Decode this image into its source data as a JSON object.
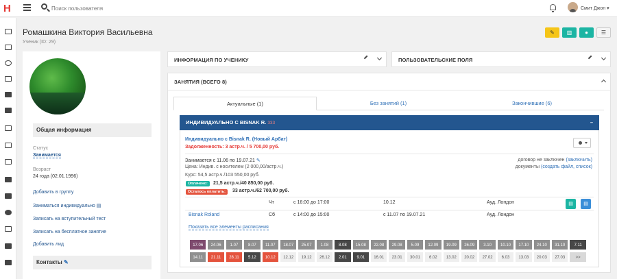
{
  "app": {
    "logo": "H",
    "search_placeholder": "Поиск пользователя",
    "username": "Смит Джон"
  },
  "page": {
    "title": "Ромашкина Виктория Васильевна",
    "subtitle": "Ученик (ID: 29)"
  },
  "toolbar": {
    "more_label": "☰"
  },
  "profile": {
    "general_header": "Общая информация",
    "status_label": "Статус",
    "status_value": "Занимается",
    "age_label": "Возраст",
    "age_value": "24 года (02.01.1996)",
    "links": [
      "Добавить в группу",
      "Заниматься индивидуально",
      "Записать на вступительный тест",
      "Записать на бесплатное занятие",
      "Добавить лид"
    ],
    "contacts_header": "Контакты"
  },
  "cards": {
    "student_info": "ИНФОРМАЦИЯ ПО УЧЕНИКУ",
    "custom_fields": "ПОЛЬЗОВАТЕЛЬСКИЕ ПОЛЯ",
    "lessons": "ЗАНЯТИЯ (ВСЕГО 8)"
  },
  "tabs": [
    "Актуальные (1)",
    "Без занятий (1)",
    "Закончившие (6)"
  ],
  "lesson": {
    "band_title": "ИНДИВИДУАЛЬНО С BISNAK R.",
    "band_suffix": "ЗЗЗ",
    "band_toggle": "–",
    "name": "Индивидуально с Bisnak R. (Новый Арбат)",
    "debt": "Задолженность: 3 астр.ч. / 5 700,00 руб.",
    "period": "Занимается с 11.06 по 19.07.21",
    "price": "Цена: Индив. с носителем (2 000,00/астр.ч.)",
    "course": "Курс: 54,5 астр.ч./103 550,00 руб.",
    "paid_badge": "Оплачено:",
    "paid_value": "21,5 астр.ч./40 850,00 руб.",
    "left_badge": "Осталось оплатить:",
    "left_value": "33 астр.ч./62 700,00 руб.",
    "contract_text": "договор не заключен",
    "contract_link": "(заключить)",
    "docs_text": "документы",
    "docs_link": "(создать файл, список)",
    "schedule": [
      {
        "teacher": "",
        "day": "Чт",
        "time": "с 16:00 до 17:00",
        "dates": "10.12",
        "room": "Ауд. Лондон"
      },
      {
        "teacher": "Bisnak Roland",
        "day": "Сб",
        "time": "с 14:00 до 15:00",
        "dates": "с 11.07 по 19.07.21",
        "room": "Ауд. Лондон"
      }
    ],
    "show_all": "Показать все элементы расписания"
  },
  "calendar": {
    "row1": [
      {
        "d": "17.06",
        "c": "#7e4a6e"
      },
      {
        "d": "24.06",
        "c": "#8f8f8f"
      },
      {
        "d": "1.07",
        "c": "#8f8f8f"
      },
      {
        "d": "8.07",
        "c": "#8f8f8f"
      },
      {
        "d": "11.07",
        "c": "#8f8f8f"
      },
      {
        "d": "18.07",
        "c": "#8f8f8f"
      },
      {
        "d": "25.07",
        "c": "#8f8f8f"
      },
      {
        "d": "1.08",
        "c": "#8f8f8f"
      },
      {
        "d": "8.08",
        "c": "#474747"
      },
      {
        "d": "15.08",
        "c": "#8f8f8f"
      },
      {
        "d": "22.08",
        "c": "#8f8f8f"
      },
      {
        "d": "29.08",
        "c": "#8f8f8f"
      },
      {
        "d": "5.09",
        "c": "#8f8f8f"
      },
      {
        "d": "12.09",
        "c": "#8f8f8f"
      },
      {
        "d": "19.09",
        "c": "#8f8f8f"
      },
      {
        "d": "26.09",
        "c": "#8f8f8f"
      },
      {
        "d": "3.10",
        "c": "#8f8f8f"
      },
      {
        "d": "10.10",
        "c": "#8f8f8f"
      },
      {
        "d": "17.10",
        "c": "#8f8f8f"
      },
      {
        "d": "24.10",
        "c": "#8f8f8f"
      },
      {
        "d": "31.10",
        "c": "#8f8f8f"
      },
      {
        "d": "7.11",
        "c": "#474747"
      }
    ],
    "row2": [
      {
        "d": "14.11",
        "c": "#8f8f8f"
      },
      {
        "d": "21.11",
        "c": "#e4533d"
      },
      {
        "d": "28.11",
        "c": "#e4533d"
      },
      {
        "d": "5.12",
        "c": "#474747"
      },
      {
        "d": "10.12",
        "c": "#e4533d"
      },
      {
        "d": "12.12",
        "c": "#efefef"
      },
      {
        "d": "19.12",
        "c": "#efefef"
      },
      {
        "d": "26.12",
        "c": "#efefef"
      },
      {
        "d": "2.01",
        "c": "#474747"
      },
      {
        "d": "9.01",
        "c": "#474747"
      },
      {
        "d": "16.01",
        "c": "#efefef"
      },
      {
        "d": "23.01",
        "c": "#efefef"
      },
      {
        "d": "30.01",
        "c": "#efefef"
      },
      {
        "d": "6.02",
        "c": "#efefef"
      },
      {
        "d": "13.02",
        "c": "#efefef"
      },
      {
        "d": "20.02",
        "c": "#efefef"
      },
      {
        "d": "27.02",
        "c": "#efefef"
      },
      {
        "d": "6.03",
        "c": "#efefef"
      },
      {
        "d": "13.03",
        "c": "#efefef"
      },
      {
        "d": "20.03",
        "c": "#efefef"
      },
      {
        "d": "27.03",
        "c": "#efefef"
      },
      {
        "d": ">>",
        "c": "#d9d9d9"
      }
    ]
  }
}
